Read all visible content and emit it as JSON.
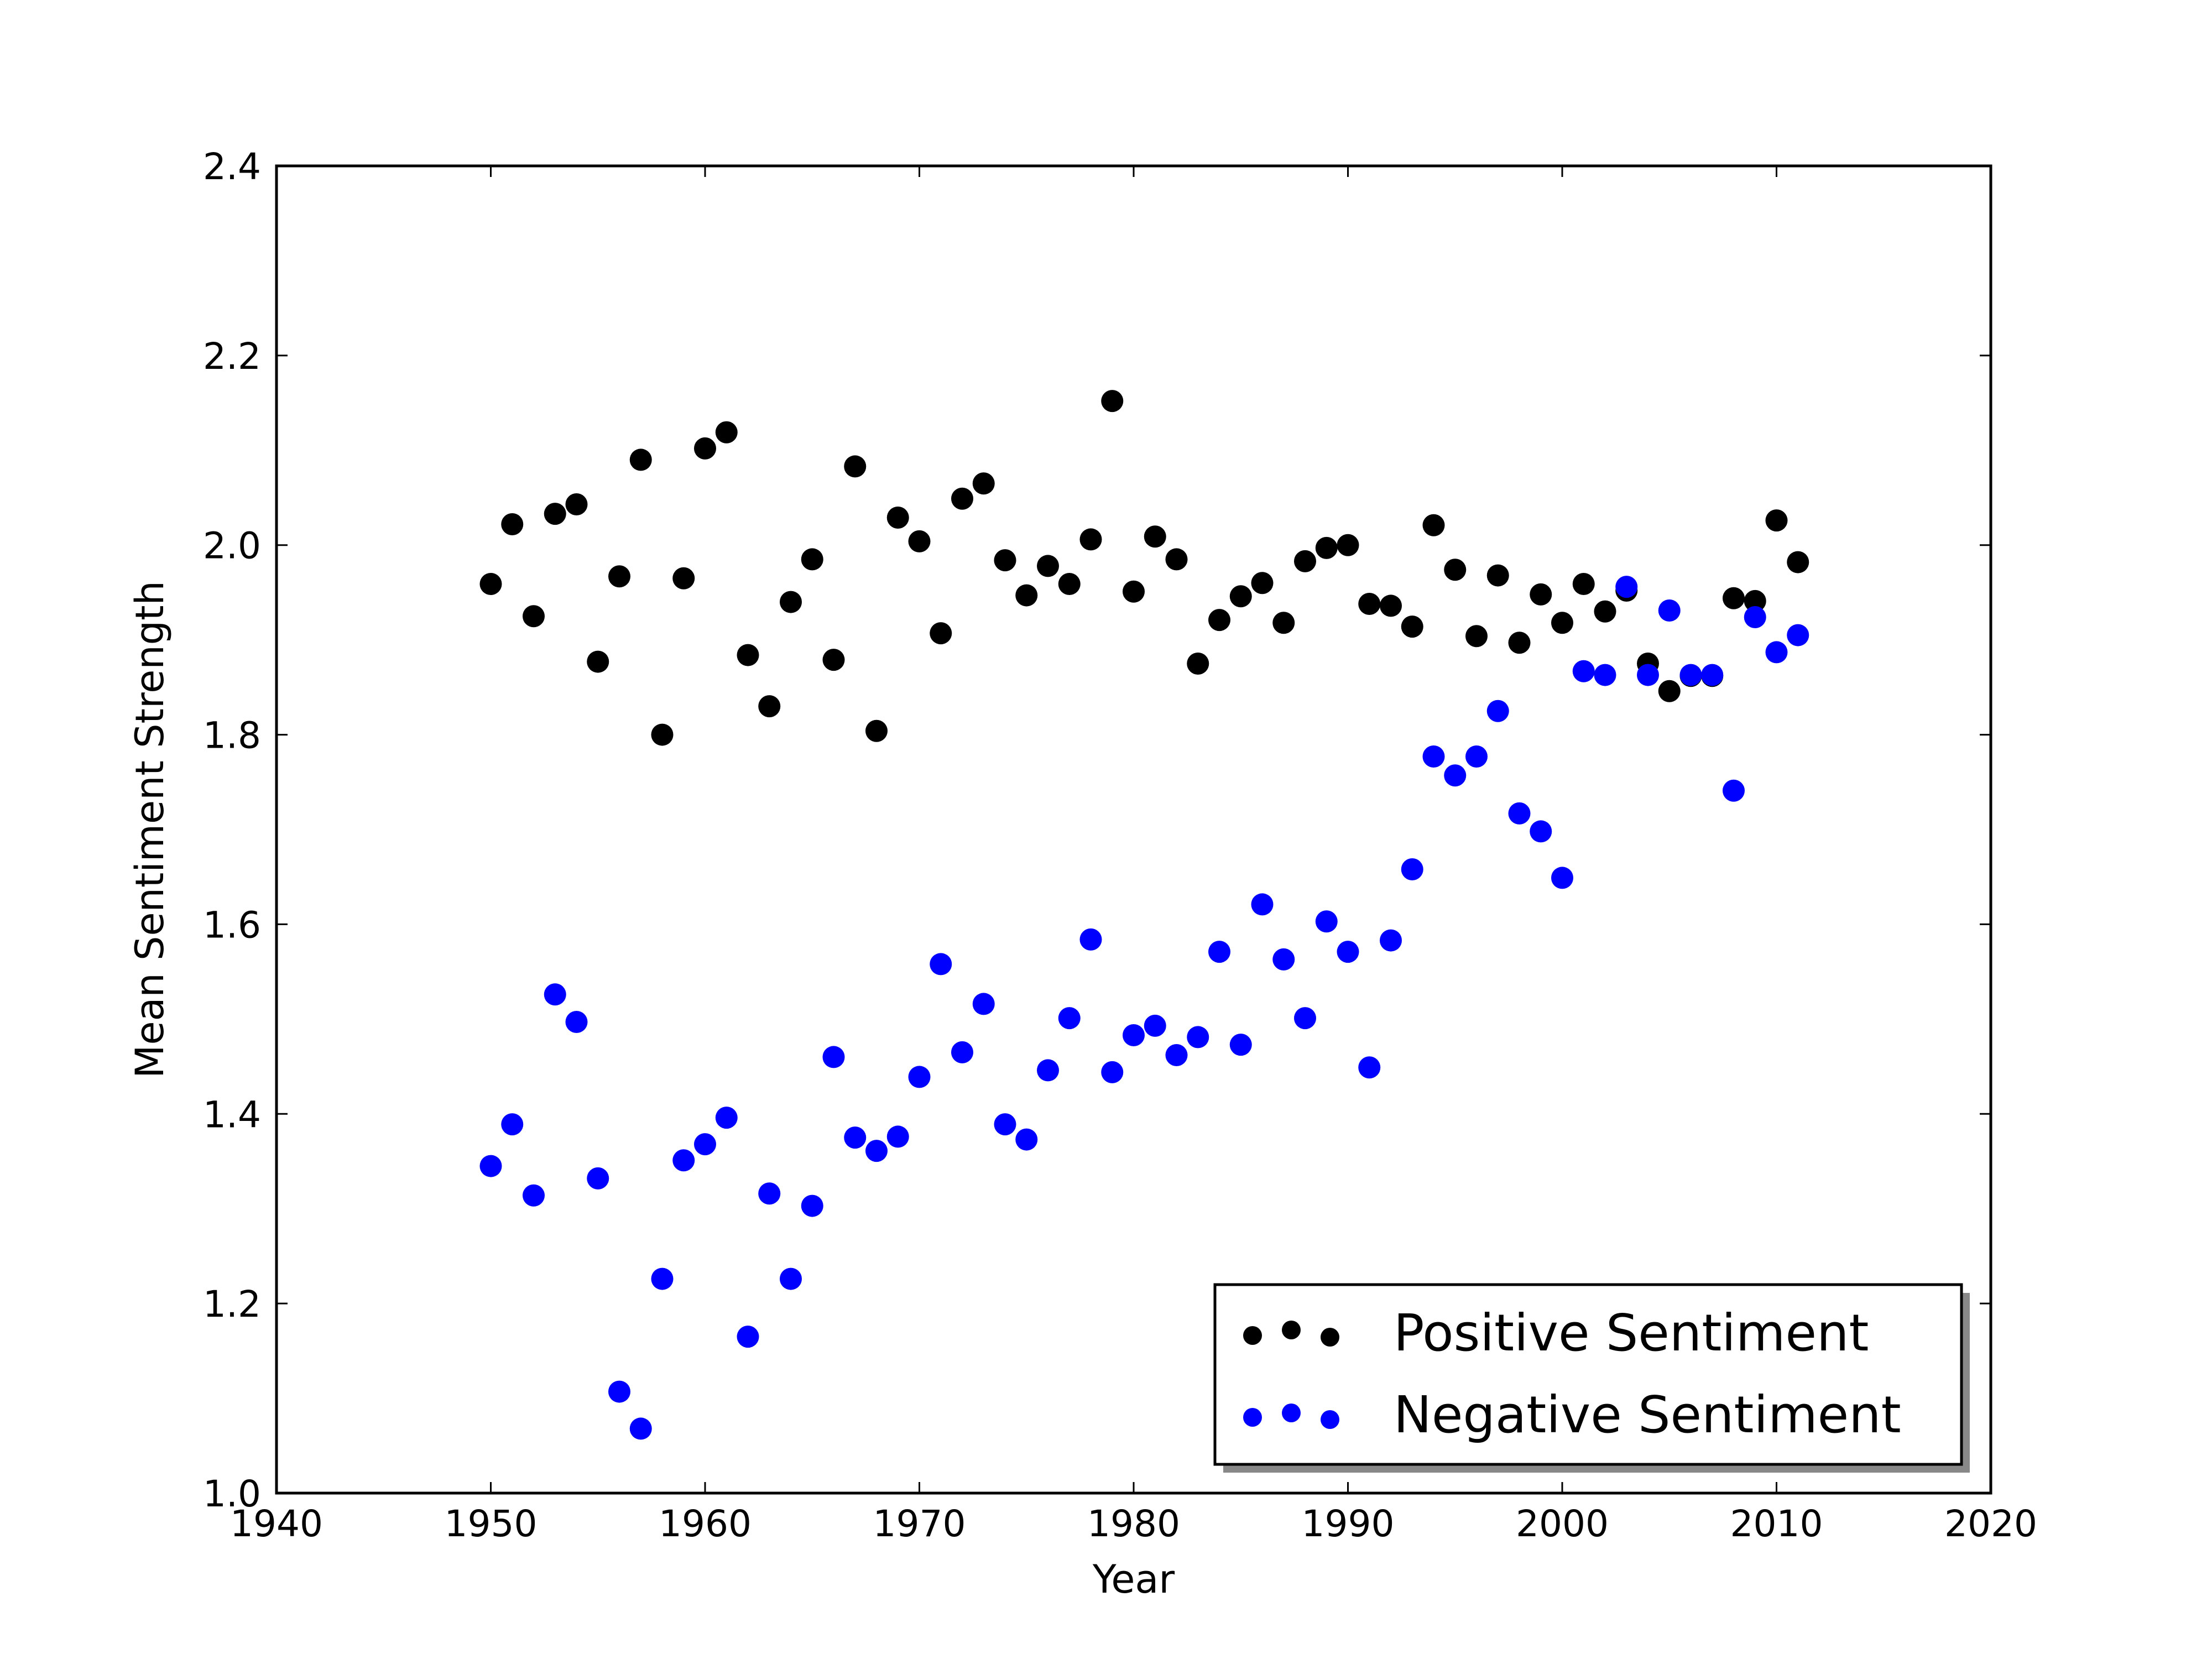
{
  "chart_data": {
    "type": "scatter",
    "title": "",
    "xlabel": "Year",
    "ylabel": "Mean Sentiment Strength",
    "xlim": [
      1940,
      2020
    ],
    "ylim": [
      1.0,
      2.4
    ],
    "xticks": [
      "1940",
      "1950",
      "1960",
      "1970",
      "1980",
      "1990",
      "2000",
      "2010",
      "2020"
    ],
    "yticks": [
      "1.0",
      "1.2",
      "1.4",
      "1.6",
      "1.8",
      "2.0",
      "2.2",
      "2.4"
    ],
    "grid": false,
    "legend_position": "lower-right",
    "x": [
      1950,
      1951,
      1952,
      1953,
      1954,
      1955,
      1956,
      1957,
      1958,
      1959,
      1960,
      1961,
      1962,
      1963,
      1964,
      1965,
      1966,
      1967,
      1968,
      1969,
      1970,
      1971,
      1972,
      1973,
      1974,
      1975,
      1976,
      1977,
      1978,
      1979,
      1980,
      1981,
      1982,
      1983,
      1984,
      1985,
      1986,
      1987,
      1988,
      1989,
      1990,
      1991,
      1992,
      1993,
      1994,
      1995,
      1996,
      1997,
      1998,
      1999,
      2000,
      2001,
      2002,
      2003,
      2004,
      2005,
      2006,
      2007,
      2008,
      2009,
      2010,
      2011
    ],
    "series": [
      {
        "name": "Positive Sentiment",
        "color": "#000000",
        "values": [
          1.959,
          2.022,
          1.925,
          2.033,
          2.043,
          1.877,
          1.967,
          2.09,
          1.8,
          1.965,
          2.102,
          2.119,
          1.884,
          1.83,
          1.94,
          1.985,
          1.879,
          2.083,
          1.804,
          2.029,
          2.004,
          1.907,
          2.049,
          2.065,
          1.984,
          1.947,
          1.978,
          1.959,
          2.006,
          2.152,
          1.951,
          2.009,
          1.985,
          1.875,
          1.921,
          1.946,
          1.96,
          1.918,
          1.983,
          1.997,
          2.0,
          1.938,
          1.936,
          1.914,
          2.021,
          1.974,
          1.904,
          1.968,
          1.897,
          1.948,
          1.918,
          1.959,
          1.93,
          1.952,
          1.875,
          1.846,
          1.862,
          1.862,
          1.944,
          1.941,
          2.026,
          1.982
        ]
      },
      {
        "name": "Negative Sentiment",
        "color": "#0000ff",
        "values": [
          1.345,
          1.389,
          1.314,
          1.526,
          1.497,
          1.332,
          1.107,
          1.068,
          1.226,
          1.351,
          1.368,
          1.396,
          1.165,
          1.316,
          1.226,
          1.303,
          1.46,
          1.375,
          1.361,
          1.376,
          1.439,
          1.558,
          1.465,
          1.516,
          1.389,
          1.373,
          1.446,
          1.501,
          1.584,
          1.444,
          1.483,
          1.493,
          1.462,
          1.481,
          1.571,
          1.473,
          1.621,
          1.563,
          1.501,
          1.603,
          1.571,
          1.449,
          1.583,
          1.658,
          1.777,
          1.757,
          1.777,
          1.825,
          1.717,
          1.698,
          1.649,
          1.867,
          1.863,
          1.956,
          1.863,
          1.931,
          1.863,
          1.863,
          1.741,
          1.924,
          1.887,
          1.905
        ]
      }
    ]
  }
}
